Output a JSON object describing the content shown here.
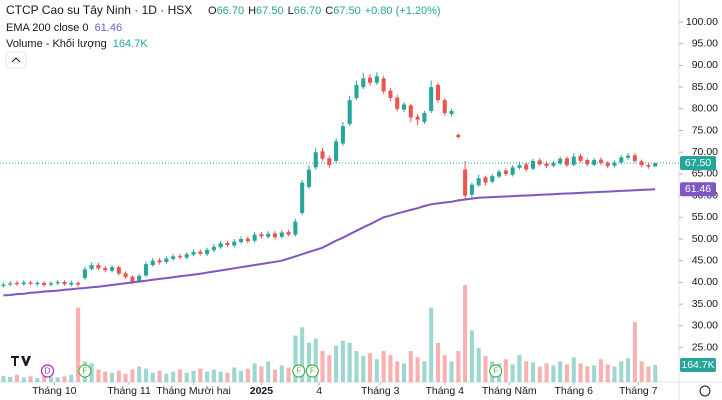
{
  "chart_data": {
    "type": "candlestick",
    "title": "CTCP Cao su Tây Ninh · 1D · HSX",
    "ohlc_legend": [
      {
        "key": "O",
        "value": "66.70"
      },
      {
        "key": "H",
        "value": "67.50"
      },
      {
        "key": "L",
        "value": "66.70"
      },
      {
        "key": "C",
        "value": "67.50"
      }
    ],
    "change": "+0.80 (+1.20%)",
    "ema_name": "EMA 200 close 0",
    "ema_label": "61.46",
    "volume_name": "Volume - Khối lượng",
    "volume_label": "164.7K",
    "last_price_label": "67.50",
    "up_color": "#26a69a",
    "down_color": "#ef5350",
    "ema_color": "#7e57c2",
    "open": [
      39.2,
      39.5,
      39.9,
      39.6,
      40.0,
      39.6,
      39.9,
      39.5,
      39.8,
      40.1,
      39.5,
      39.9,
      41.0,
      43.1,
      44.0,
      43.3,
      42.7,
      43.5,
      42.1,
      41.3,
      40.3,
      41.6,
      44.0,
      45.1,
      44.7,
      45.4,
      46.1,
      45.7,
      46.4,
      47.1,
      46.5,
      47.4,
      48.1,
      49.1,
      48.5,
      49.3,
      50.1,
      49.6,
      51.1,
      50.5,
      51.3,
      50.5,
      51.6,
      51.0,
      56.0,
      62.0,
      66.5,
      70.2,
      68.6,
      68.0,
      72.0,
      76.5,
      82.5,
      85.0,
      87.2,
      86.0,
      87.0,
      84.2,
      82.6,
      79.8,
      80.8,
      78.2,
      77.0,
      79.5,
      85.5,
      82.0,
      78.8,
      74.0,
      66.0,
      60.2,
      62.4,
      64.2,
      63.2,
      64.4,
      65.8,
      64.8,
      66.4,
      67.2,
      66.2,
      68.1,
      67.4,
      66.9,
      67.4,
      68.6,
      67.1,
      69.1,
      68.2,
      67.1,
      68.3,
      67.6,
      66.9,
      67.6,
      68.7,
      69.3,
      67.9,
      67.1,
      66.7
    ],
    "high": [
      40.0,
      40.3,
      40.4,
      40.5,
      40.4,
      40.3,
      40.2,
      40.3,
      40.6,
      40.5,
      40.4,
      40.2,
      43.6,
      44.6,
      44.5,
      43.8,
      44.0,
      43.9,
      42.5,
      41.6,
      42.0,
      44.8,
      45.6,
      45.6,
      46.0,
      46.6,
      46.6,
      47.0,
      47.6,
      47.6,
      48.0,
      48.8,
      49.6,
      49.6,
      50.0,
      50.6,
      50.6,
      51.6,
      51.6,
      51.8,
      51.8,
      52.0,
      52.1,
      54.6,
      63.6,
      67.0,
      71.0,
      71.0,
      69.2,
      73.2,
      77.0,
      83.0,
      86.5,
      88.3,
      88.0,
      88.4,
      87.6,
      84.8,
      83.2,
      81.6,
      81.2,
      78.8,
      79.6,
      86.5,
      86.0,
      82.5,
      80.0,
      74.3,
      68.0,
      63.0,
      64.8,
      64.6,
      65.0,
      66.0,
      66.3,
      67.0,
      67.8,
      67.6,
      68.5,
      68.6,
      67.9,
      68.0,
      69.0,
      69.0,
      69.8,
      69.6,
      68.6,
      68.7,
      68.8,
      68.0,
      68.1,
      69.3,
      69.8,
      69.8,
      68.3,
      67.5,
      67.5
    ],
    "low": [
      38.8,
      39.1,
      39.2,
      39.2,
      39.3,
      39.2,
      39.0,
      39.1,
      39.4,
      39.2,
      39.1,
      39.0,
      40.6,
      42.7,
      42.8,
      42.3,
      42.3,
      41.6,
      40.8,
      39.6,
      39.9,
      41.2,
      43.6,
      44.1,
      44.3,
      45.0,
      45.3,
      45.3,
      46.0,
      46.2,
      46.1,
      47.0,
      47.7,
      48.1,
      48.1,
      48.9,
      49.0,
      49.2,
      50.1,
      50.1,
      49.9,
      50.1,
      50.6,
      50.6,
      55.5,
      61.5,
      66.0,
      68.0,
      66.4,
      67.5,
      71.5,
      76.0,
      82.0,
      84.5,
      85.3,
      85.5,
      83.4,
      81.8,
      79.4,
      79.2,
      77.0,
      76.2,
      76.5,
      79.0,
      81.4,
      78.4,
      78.2,
      73.2,
      59.0,
      59.6,
      62.0,
      62.4,
      62.8,
      64.0,
      64.5,
      64.4,
      66.0,
      65.5,
      65.8,
      66.8,
      66.3,
      66.5,
      67.0,
      66.6,
      66.8,
      67.6,
      66.8,
      66.8,
      67.0,
      66.3,
      66.5,
      67.2,
      68.3,
      67.6,
      66.5,
      66.2,
      66.7
    ],
    "close": [
      39.5,
      39.8,
      39.6,
      40.0,
      39.7,
      39.9,
      39.4,
      39.8,
      40.1,
      39.6,
      39.9,
      39.5,
      43.0,
      44.0,
      43.2,
      42.8,
      43.5,
      42.0,
      41.2,
      40.2,
      41.5,
      44.2,
      45.0,
      44.6,
      45.5,
      46.0,
      45.8,
      46.5,
      47.0,
      46.6,
      47.5,
      48.2,
      49.0,
      48.6,
      49.4,
      50.0,
      49.5,
      51.0,
      50.6,
      51.2,
      50.4,
      51.5,
      51.0,
      54.0,
      63.0,
      66.0,
      70.0,
      68.5,
      67.0,
      72.5,
      76.0,
      82.0,
      85.5,
      87.0,
      86.0,
      87.5,
      84.0,
      82.5,
      80.0,
      81.0,
      78.0,
      77.5,
      79.0,
      85.0,
      82.0,
      79.0,
      79.5,
      73.5,
      60.0,
      62.5,
      64.0,
      63.0,
      64.5,
      65.5,
      65.0,
      66.5,
      67.0,
      66.0,
      68.0,
      67.2,
      66.8,
      67.5,
      68.5,
      67.0,
      69.0,
      68.0,
      67.2,
      68.2,
      67.5,
      66.8,
      67.6,
      68.8,
      69.2,
      68.0,
      67.0,
      66.7,
      67.5
    ],
    "volume": [
      60000,
      50000,
      70000,
      45000,
      55000,
      40000,
      60000,
      50000,
      45000,
      55000,
      70000,
      720000,
      200000,
      180000,
      120000,
      100000,
      90000,
      110000,
      80000,
      120000,
      150000,
      130000,
      90000,
      110000,
      80000,
      100000,
      120000,
      90000,
      110000,
      130000,
      100000,
      120000,
      100000,
      90000,
      140000,
      110000,
      130000,
      180000,
      150000,
      200000,
      120000,
      160000,
      140000,
      450000,
      530000,
      380000,
      420000,
      300000,
      260000,
      350000,
      400000,
      380000,
      300000,
      250000,
      280000,
      220000,
      300000,
      260000,
      200000,
      180000,
      300000,
      240000,
      200000,
      720000,
      380000,
      260000,
      200000,
      300000,
      940000,
      500000,
      330000,
      250000,
      200000,
      180000,
      220000,
      170000,
      260000,
      200000,
      190000,
      150000,
      180000,
      160000,
      200000,
      170000,
      240000,
      180000,
      150000,
      160000,
      220000,
      170000,
      150000,
      200000,
      230000,
      580000,
      200000,
      150000,
      164700
    ],
    "ema": [
      37.0,
      37.1,
      37.3,
      37.4,
      37.6,
      37.7,
      37.9,
      38.0,
      38.1,
      38.3,
      38.4,
      38.6,
      38.7,
      38.9,
      39.0,
      39.2,
      39.4,
      39.6,
      39.8,
      40.0,
      40.2,
      40.4,
      40.6,
      40.8,
      41.0,
      41.2,
      41.4,
      41.6,
      41.8,
      42.0,
      42.25,
      42.5,
      42.75,
      43.0,
      43.25,
      43.5,
      43.75,
      44.0,
      44.25,
      44.5,
      44.75,
      45.0,
      45.5,
      46.0,
      46.5,
      47.0,
      47.5,
      48.0,
      48.8,
      49.6,
      50.3,
      51.1,
      51.9,
      52.7,
      53.4,
      54.2,
      55.0,
      55.4,
      55.9,
      56.3,
      56.7,
      57.1,
      57.6,
      58.0,
      58.2,
      58.4,
      58.6,
      58.9,
      59.1,
      59.3,
      59.5,
      59.58,
      59.65,
      59.73,
      59.8,
      59.88,
      59.95,
      60.03,
      60.1,
      60.18,
      60.25,
      60.33,
      60.41,
      60.48,
      60.56,
      60.63,
      60.71,
      60.78,
      60.86,
      60.93,
      61.01,
      61.08,
      61.16,
      61.23,
      61.31,
      61.38,
      61.46
    ],
    "events": [
      {
        "label": "D",
        "x": 6.5
      },
      {
        "label": "F",
        "x": 12
      },
      {
        "label": "F",
        "x": 43.5
      },
      {
        "label": "F",
        "x": 45.5
      },
      {
        "label": "F",
        "x": 72.5
      }
    ],
    "xlim": [
      -0.5,
      99.5
    ],
    "xticks": [
      {
        "value": 7.5,
        "label": "Tháng 10"
      },
      {
        "value": 18.5,
        "label": "Tháng 11"
      },
      {
        "value": 28,
        "label": "Tháng Mười hai"
      },
      {
        "value": 38,
        "label": "2025"
      },
      {
        "value": 46.5,
        "label": "4"
      },
      {
        "value": 55.5,
        "label": "Tháng 3"
      },
      {
        "value": 65,
        "label": "Tháng 4"
      },
      {
        "value": 74.5,
        "label": "Tháng Năm"
      },
      {
        "value": 84,
        "label": "Tháng 6"
      },
      {
        "value": 93.5,
        "label": "Tháng 7"
      }
    ],
    "ylim": [
      17.05,
      105.07
    ],
    "yticks": [
      {
        "value": 25,
        "label": "25.00"
      },
      {
        "value": 30,
        "label": "30.00"
      },
      {
        "value": 35,
        "label": "35.00"
      },
      {
        "value": 40,
        "label": "40.00"
      },
      {
        "value": 45,
        "label": "45.00"
      },
      {
        "value": 50,
        "label": "50.00"
      },
      {
        "value": 55,
        "label": "55.00"
      },
      {
        "value": 60,
        "label": "60.00"
      },
      {
        "value": 65,
        "label": "65.00"
      },
      {
        "value": 70,
        "label": "70.00"
      },
      {
        "value": 75,
        "label": "75.00"
      },
      {
        "value": 80,
        "label": "80.00"
      },
      {
        "value": 85,
        "label": "85.00"
      },
      {
        "value": 90,
        "label": "90.00"
      },
      {
        "value": 95,
        "label": "95.00"
      },
      {
        "value": 100,
        "label": "100.00"
      }
    ],
    "volume_lim": [
      0,
      3700000
    ]
  }
}
